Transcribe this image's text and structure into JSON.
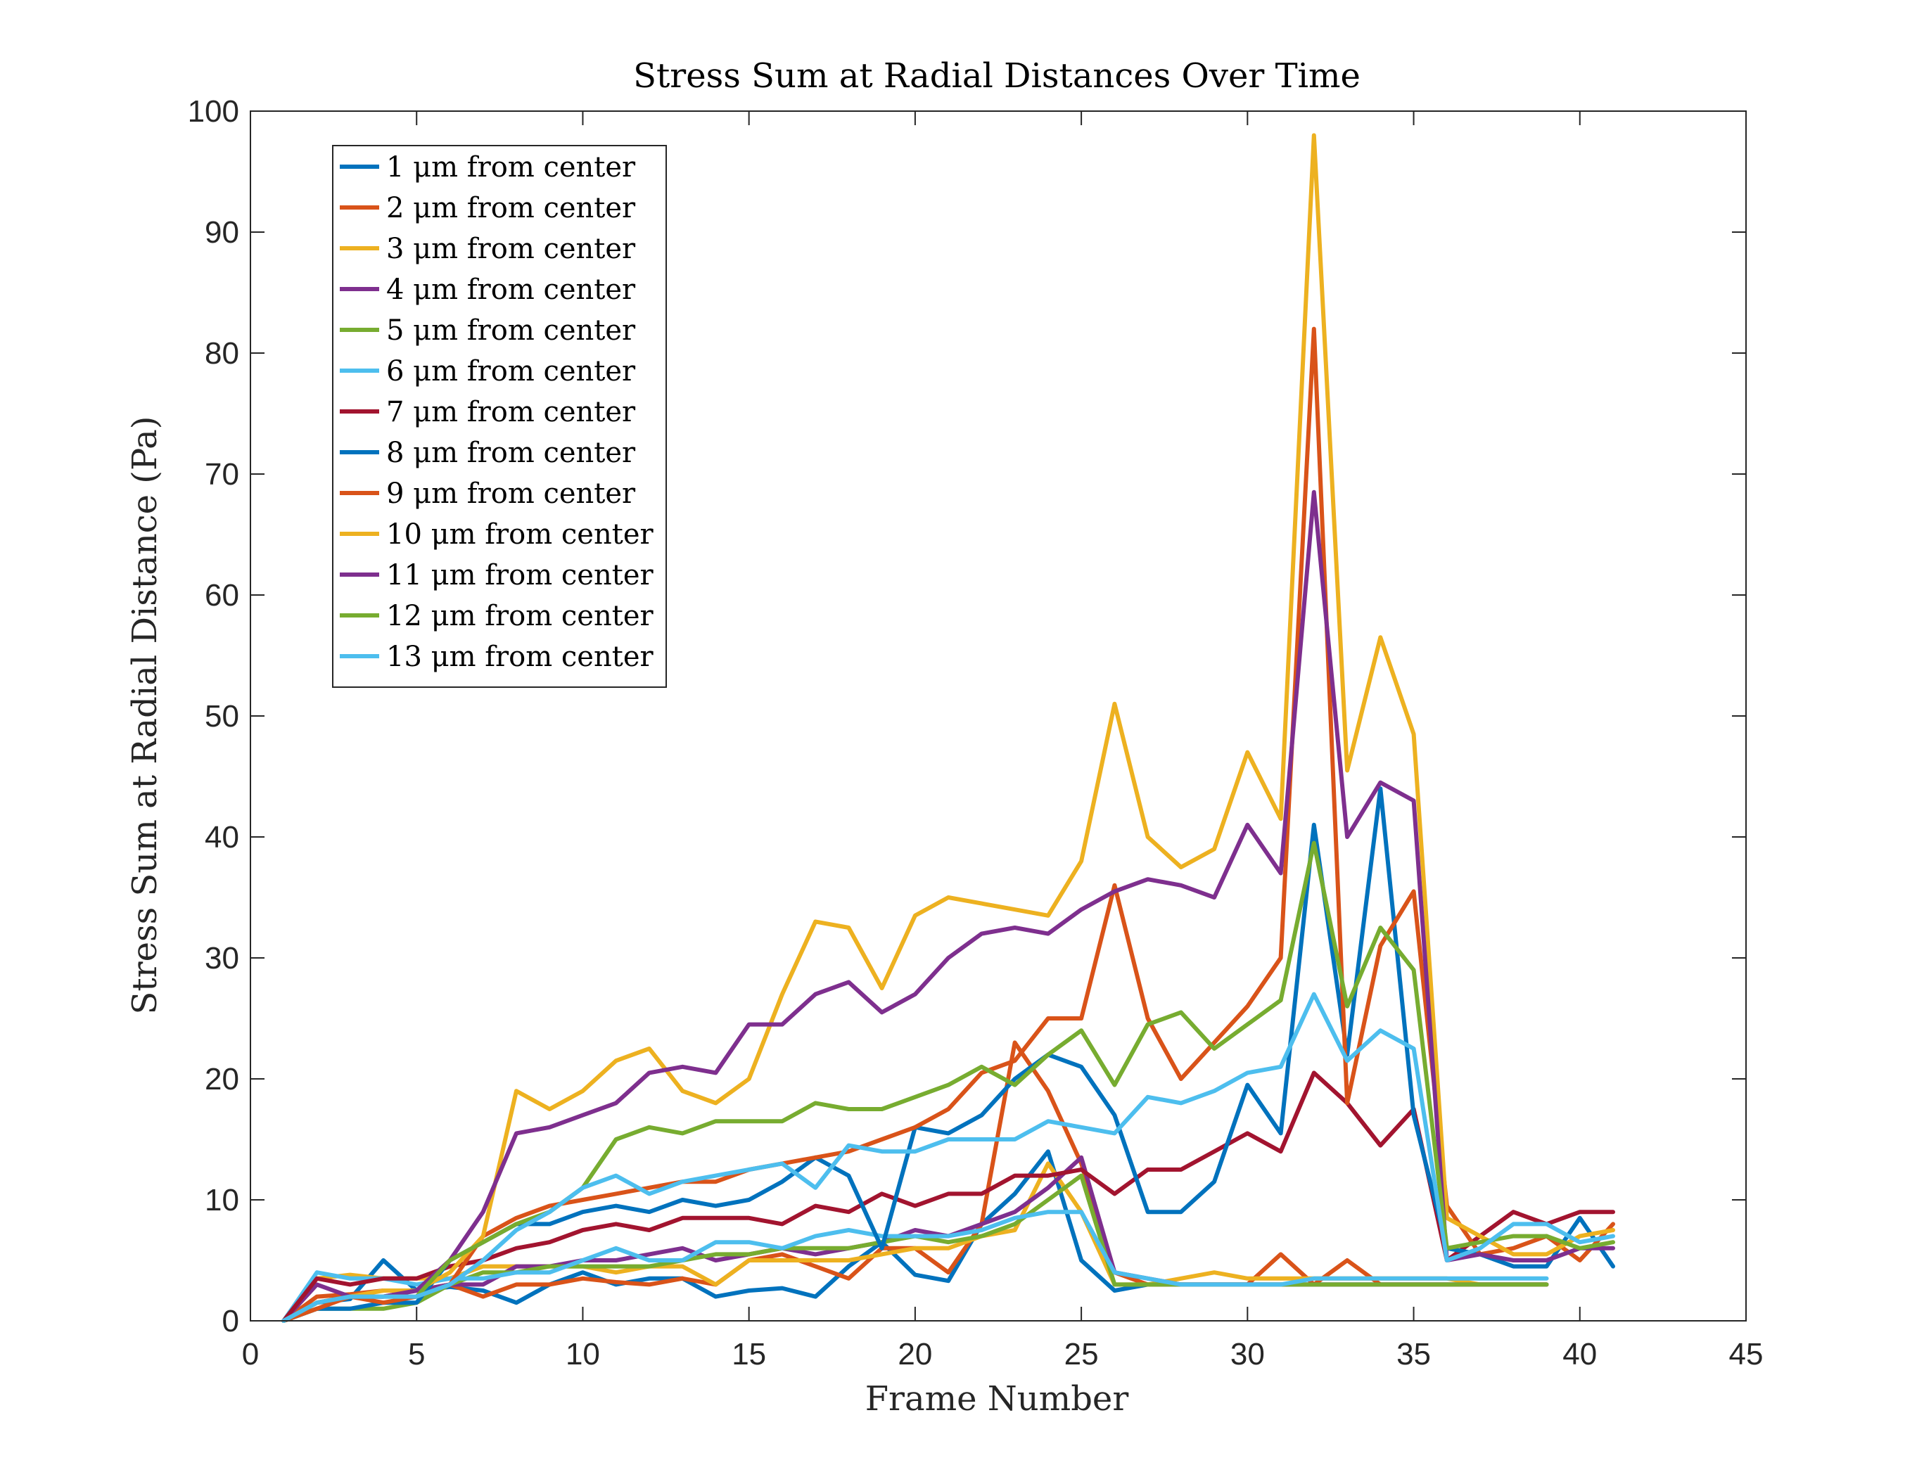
{
  "chart_data": {
    "type": "line",
    "title": "Stress Sum at Radial Distances Over Time",
    "xlabel": "Frame Number",
    "ylabel": "Stress Sum at Radial Distance (Pa)",
    "xlim": [
      0,
      45
    ],
    "ylim": [
      0,
      100
    ],
    "xticks": [
      0,
      5,
      10,
      15,
      20,
      25,
      30,
      35,
      40,
      45
    ],
    "yticks": [
      0,
      10,
      20,
      30,
      40,
      50,
      60,
      70,
      80,
      90,
      100
    ],
    "grid": false,
    "legend_position": "top-left",
    "x": [
      1,
      2,
      3,
      4,
      5,
      6,
      7,
      8,
      9,
      10,
      11,
      12,
      13,
      14,
      15,
      16,
      17,
      18,
      19,
      20,
      21,
      22,
      23,
      24,
      25,
      26,
      27,
      28,
      29,
      30,
      31,
      32,
      33,
      34,
      35,
      36,
      37,
      38,
      39,
      40,
      41
    ],
    "series": [
      {
        "name": "1 μm from center",
        "color": "#0072BD",
        "values": [
          0,
          1.5,
          1.8,
          5,
          2.5,
          2.8,
          2.5,
          1.5,
          3,
          4,
          3,
          3.5,
          3.5,
          2,
          2.5,
          2.7,
          2,
          4.5,
          6.5,
          3.8,
          3.3,
          8,
          10.5,
          14,
          5,
          2.5,
          3,
          3,
          3,
          3,
          3,
          3,
          3,
          3,
          3,
          3,
          3,
          3,
          3,
          null,
          null
        ]
      },
      {
        "name": "2 μm from center",
        "color": "#D95319",
        "values": [
          0,
          2,
          2.2,
          2.5,
          2.5,
          3,
          2,
          3,
          3,
          3.5,
          3.2,
          3,
          3.5,
          3,
          5,
          5.5,
          4.5,
          3.5,
          6,
          6,
          4,
          8,
          23,
          19,
          13,
          4,
          3,
          3,
          3,
          3,
          5.5,
          3,
          5,
          3,
          3,
          3,
          3,
          3,
          3,
          null,
          null
        ]
      },
      {
        "name": "3 μm from center",
        "color": "#EDB120",
        "values": [
          0,
          3.5,
          3.8,
          3.5,
          3.5,
          3.5,
          4.5,
          4.5,
          4.5,
          4.5,
          4,
          4.5,
          4.5,
          3,
          5,
          5,
          5,
          5,
          5.5,
          6,
          6,
          7,
          7.5,
          13,
          9,
          3,
          3,
          3.5,
          4,
          3.5,
          3.5,
          3.5,
          3.5,
          3.5,
          3.5,
          3.5,
          3,
          3,
          3,
          null,
          null
        ]
      },
      {
        "name": "4 μm from center",
        "color": "#7E2F8E",
        "values": [
          0,
          3,
          2,
          2,
          2.5,
          3,
          3,
          4.5,
          4.5,
          5,
          5,
          5.5,
          6,
          5,
          5.5,
          6,
          5.5,
          6,
          6.5,
          7.5,
          7,
          8,
          9,
          11,
          13.5,
          4,
          3.5,
          3,
          3,
          3,
          3,
          3,
          3,
          3,
          3,
          3,
          3,
          3,
          3,
          null,
          null
        ]
      },
      {
        "name": "5 μm from center",
        "color": "#77AC30",
        "values": [
          0,
          1,
          1,
          1,
          1.5,
          3,
          4,
          4,
          4.5,
          4.5,
          4.5,
          4.5,
          5,
          5.5,
          5.5,
          6,
          6,
          6,
          6.5,
          7,
          6.5,
          7,
          8,
          10,
          12,
          3,
          3,
          3,
          3,
          3,
          3,
          3,
          3,
          3,
          3,
          3,
          3,
          3,
          3,
          null,
          null
        ]
      },
      {
        "name": "6 μm from center",
        "color": "#4DBEEE",
        "values": [
          0,
          4,
          3.5,
          3.5,
          3,
          3.5,
          3.5,
          4,
          4,
          5,
          6,
          5,
          5,
          6.5,
          6.5,
          6,
          7,
          7.5,
          7,
          7,
          7,
          7.5,
          8.5,
          9,
          9,
          4,
          3.5,
          3,
          3,
          3,
          3,
          3.5,
          3.5,
          3.5,
          3.5,
          3.5,
          3.5,
          3.5,
          3.5,
          null,
          null
        ]
      },
      {
        "name": "7 μm from center",
        "color": "#A2142F",
        "values": [
          0,
          3.5,
          3,
          3.5,
          3.5,
          4.5,
          5,
          6,
          6.5,
          7.5,
          8,
          7.5,
          8.5,
          8.5,
          8.5,
          8,
          9.5,
          9,
          10.5,
          9.5,
          10.5,
          10.5,
          12,
          12,
          12.5,
          10.5,
          12.5,
          12.5,
          14,
          15.5,
          14,
          20.5,
          18,
          14.5,
          17.5,
          5,
          7,
          9,
          8,
          9,
          9
        ]
      },
      {
        "name": "8 μm from center",
        "color": "#0072BD",
        "values": [
          0,
          1,
          1,
          1.5,
          1.5,
          5,
          6.5,
          8,
          8,
          9,
          9.5,
          9,
          10,
          9.5,
          10,
          11.5,
          13.5,
          12,
          6,
          16,
          15.5,
          17,
          20,
          22,
          21,
          17,
          9,
          9,
          11.5,
          19.5,
          15.5,
          41,
          22,
          44,
          17,
          6,
          5.5,
          4.5,
          4.5,
          8.5,
          4.5
        ]
      },
      {
        "name": "9 μm from center",
        "color": "#D95319",
        "values": [
          0,
          1,
          2,
          1.5,
          2,
          3,
          7,
          8.5,
          9.5,
          10,
          10.5,
          11,
          11.5,
          11.5,
          12.5,
          13,
          13.5,
          14,
          15,
          16,
          17.5,
          20.5,
          21.5,
          25,
          25,
          36,
          25,
          20,
          23,
          26,
          30,
          82,
          18,
          31,
          35.5,
          9.5,
          5.5,
          6,
          7,
          5,
          8
        ]
      },
      {
        "name": "10 μm from center",
        "color": "#EDB120",
        "values": [
          0,
          1.5,
          2,
          2.5,
          2.5,
          4,
          7,
          19,
          17.5,
          19,
          21.5,
          22.5,
          19,
          18,
          20,
          27,
          33,
          32.5,
          27.5,
          33.5,
          35,
          34.5,
          34,
          33.5,
          38,
          51,
          40,
          37.5,
          39,
          47,
          41.5,
          98,
          45.5,
          56.5,
          48.5,
          8.5,
          7,
          5.5,
          5.5,
          7,
          7.5
        ]
      },
      {
        "name": "11 μm from center",
        "color": "#7E2F8E",
        "values": [
          0,
          1.5,
          2,
          2,
          2.5,
          5,
          9,
          15.5,
          16,
          17,
          18,
          20.5,
          21,
          20.5,
          24.5,
          24.5,
          27,
          28,
          25.5,
          27,
          30,
          32,
          32.5,
          32,
          34,
          35.5,
          36.5,
          36,
          35,
          41,
          37,
          68.5,
          40,
          44.5,
          43,
          5,
          5.5,
          5,
          5,
          6,
          6
        ]
      },
      {
        "name": "12 μm from center",
        "color": "#77AC30",
        "values": [
          0,
          1.5,
          2,
          2,
          2,
          5,
          6.5,
          8,
          9,
          11,
          15,
          16,
          15.5,
          16.5,
          16.5,
          16.5,
          18,
          17.5,
          17.5,
          18.5,
          19.5,
          21,
          19.5,
          22,
          24,
          19.5,
          24.5,
          25.5,
          22.5,
          24.5,
          26.5,
          39.5,
          26,
          32.5,
          29,
          6,
          6.5,
          7,
          7,
          6,
          6.5
        ]
      },
      {
        "name": "13 μm from center",
        "color": "#4DBEEE",
        "values": [
          0,
          1.5,
          2,
          2,
          2,
          3,
          5,
          7.5,
          9,
          11,
          12,
          10.5,
          11.5,
          12,
          12.5,
          13,
          11,
          14.5,
          14,
          14,
          15,
          15,
          15,
          16.5,
          16,
          15.5,
          18.5,
          18,
          19,
          20.5,
          21,
          27,
          21.5,
          24,
          22.5,
          5,
          6,
          8,
          8,
          6.5,
          7
        ]
      }
    ]
  }
}
